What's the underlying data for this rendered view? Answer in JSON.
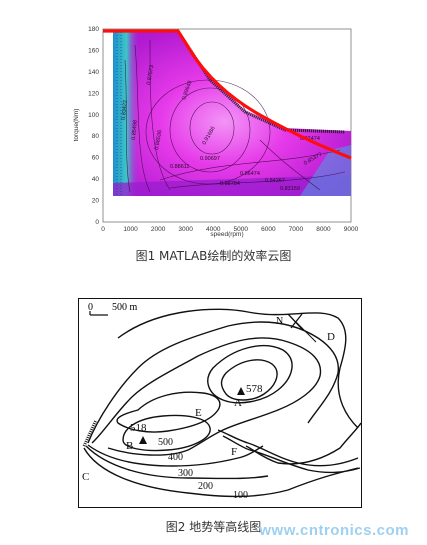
{
  "figure1": {
    "caption": "图1 MATLAB绘制的效率云图",
    "xlabel": "speed(rpm)",
    "ylabel": "torque(Nm)",
    "xticks": [
      "0",
      "1000",
      "2000",
      "3000",
      "4000",
      "5000",
      "6000",
      "7000",
      "8000",
      "9000"
    ],
    "yticks": [
      "0",
      "20",
      "40",
      "60",
      "80",
      "100",
      "120",
      "140",
      "160",
      "180"
    ],
    "contour_labels": [
      "0.89649",
      "0.87573",
      "0.85498",
      "0.90697",
      "0.83422",
      "0.86536",
      "0.91686",
      "0.88611",
      "0.86474",
      "0.84267",
      "0.83159",
      "0.85377",
      "0.88784",
      "0.92474"
    ],
    "colors": {
      "magenta": "#e21ee8",
      "peak": "#f07ef4",
      "edge_blue": "#2a9fd6",
      "teal": "#1ac2c8",
      "boundary": "#ff1010"
    }
  },
  "figure2": {
    "caption": "图2 地势等高线图",
    "scale_label": "500 m",
    "scale_zero": "0",
    "north_label": "N",
    "points": [
      {
        "name": "A",
        "elev": "578"
      },
      {
        "name": "B",
        "elev": "518"
      },
      {
        "name": "C"
      },
      {
        "name": "D"
      },
      {
        "name": "E"
      },
      {
        "name": "F"
      }
    ],
    "contour_values": [
      "500",
      "400",
      "300",
      "200",
      "100"
    ]
  },
  "watermark": "www.cntronics.com"
}
